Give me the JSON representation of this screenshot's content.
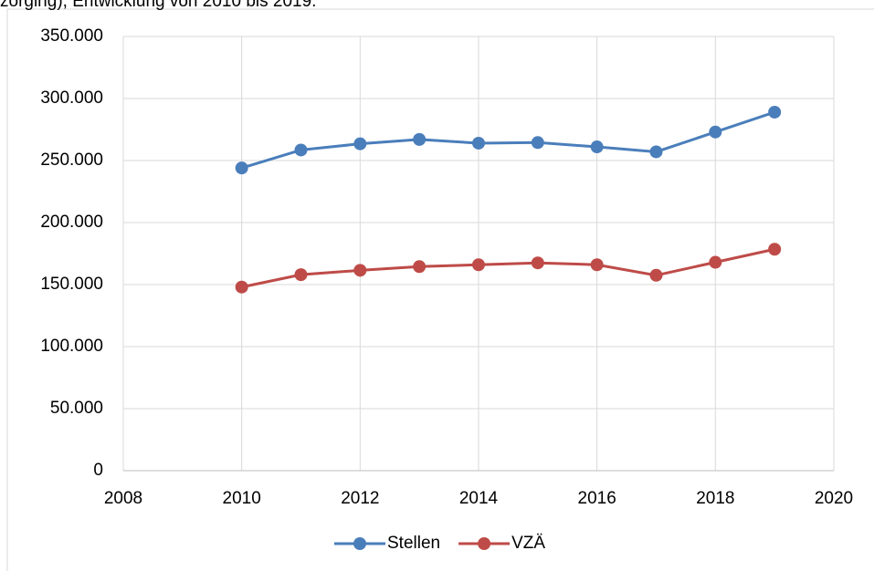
{
  "chart_data": {
    "type": "line",
    "title": "zorging), Entwicklung von 2010 bis 2019.",
    "x": [
      2010,
      2011,
      2012,
      2013,
      2014,
      2015,
      2016,
      2017,
      2018,
      2019
    ],
    "series": [
      {
        "name": "Stellen",
        "color": "#4a7ebb",
        "values": [
          244000,
          258500,
          263500,
          267000,
          264000,
          264500,
          261000,
          257000,
          273000,
          289000
        ]
      },
      {
        "name": "VZÄ",
        "color": "#be4b48",
        "values": [
          148000,
          158000,
          161500,
          164500,
          166000,
          167500,
          166000,
          157500,
          168000,
          178500
        ]
      }
    ],
    "xlim": [
      2008,
      2020
    ],
    "xticks": [
      2008,
      2010,
      2012,
      2014,
      2016,
      2018,
      2020
    ],
    "ylim": [
      0,
      350000
    ],
    "yticks": [
      0,
      {
        "value": 50000,
        "label": "50.000"
      },
      {
        "value": 100000,
        "label": "100.000"
      },
      {
        "value": 150000,
        "label": "150.000"
      },
      {
        "value": 200000,
        "label": "200.000"
      },
      {
        "value": 250000,
        "label": "250.000"
      },
      {
        "value": 300000,
        "label": "300.000"
      },
      {
        "value": 350000,
        "label": "350.000"
      }
    ],
    "grid": true,
    "legend": "bottom"
  }
}
